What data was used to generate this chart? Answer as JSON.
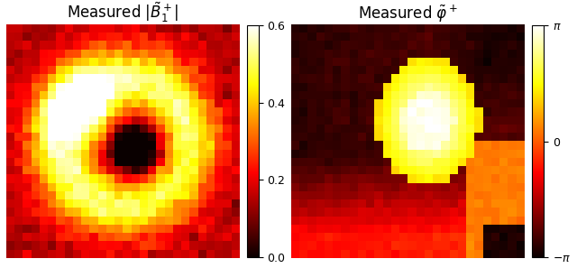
{
  "title1": "Measured $|\\tilde{B}_1^+|$",
  "title2": "Measured $\\tilde{\\varphi}^+$",
  "clim1": [
    0.0,
    0.6
  ],
  "cticks1": [
    0.0,
    0.2,
    0.4,
    0.6
  ],
  "clim2_min": -3.14159265,
  "clim2_max": 3.14159265,
  "cticks2_vals": [
    -3.14159265,
    0.0,
    3.14159265
  ],
  "figsize": [
    6.4,
    2.97
  ],
  "dpi": 100
}
